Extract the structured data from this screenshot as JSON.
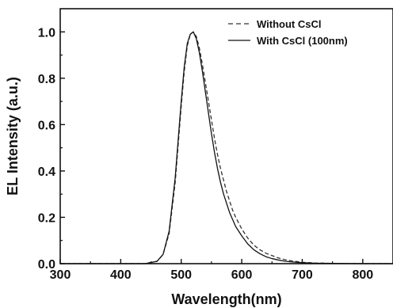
{
  "chart_data": {
    "type": "line",
    "title": "",
    "xlabel": "Wavelength(nm)",
    "ylabel": "EL Intensity (a.u.)",
    "xlim": [
      300,
      850
    ],
    "ylim": [
      0,
      1.1
    ],
    "xticks": [
      300,
      400,
      500,
      600,
      700,
      800
    ],
    "yticks": [
      0.0,
      0.2,
      0.4,
      0.6,
      0.8,
      1.0
    ],
    "xtick_labels": [
      "300",
      "400",
      "500",
      "600",
      "700",
      "800"
    ],
    "ytick_labels": [
      "0.0",
      "0.2",
      "0.4",
      "0.6",
      "0.8",
      "1.0"
    ],
    "legend_position": "top-right",
    "grid": false,
    "series": [
      {
        "name": "Without CsCl",
        "style": "dashed",
        "color": "#333333",
        "x": [
          300,
          440,
          460,
          470,
          480,
          490,
          500,
          505,
          510,
          515,
          520,
          525,
          530,
          535,
          540,
          545,
          550,
          555,
          560,
          565,
          570,
          575,
          580,
          585,
          590,
          600,
          610,
          620,
          630,
          640,
          650,
          660,
          670,
          680,
          700,
          720,
          750,
          800,
          850
        ],
        "y": [
          0.0,
          0.0,
          0.01,
          0.04,
          0.13,
          0.35,
          0.68,
          0.83,
          0.94,
          0.99,
          1.0,
          0.98,
          0.93,
          0.86,
          0.78,
          0.7,
          0.62,
          0.54,
          0.47,
          0.41,
          0.36,
          0.31,
          0.27,
          0.23,
          0.2,
          0.15,
          0.11,
          0.08,
          0.06,
          0.045,
          0.035,
          0.025,
          0.018,
          0.013,
          0.006,
          0.003,
          0.001,
          0.0,
          0.0
        ]
      },
      {
        "name": "With CsCl (100nm)",
        "style": "solid",
        "color": "#111111",
        "x": [
          300,
          440,
          460,
          470,
          480,
          490,
          500,
          505,
          510,
          515,
          520,
          525,
          530,
          535,
          540,
          545,
          550,
          555,
          560,
          565,
          570,
          575,
          580,
          585,
          590,
          600,
          610,
          620,
          630,
          640,
          650,
          660,
          670,
          680,
          700,
          720,
          750,
          800,
          850
        ],
        "y": [
          0.0,
          0.0,
          0.01,
          0.04,
          0.14,
          0.37,
          0.7,
          0.85,
          0.95,
          0.99,
          1.0,
          0.97,
          0.91,
          0.83,
          0.74,
          0.65,
          0.56,
          0.48,
          0.41,
          0.35,
          0.3,
          0.26,
          0.22,
          0.19,
          0.16,
          0.12,
          0.085,
          0.06,
          0.043,
          0.03,
          0.022,
          0.016,
          0.011,
          0.008,
          0.004,
          0.002,
          0.001,
          0.0,
          0.0
        ]
      }
    ]
  }
}
